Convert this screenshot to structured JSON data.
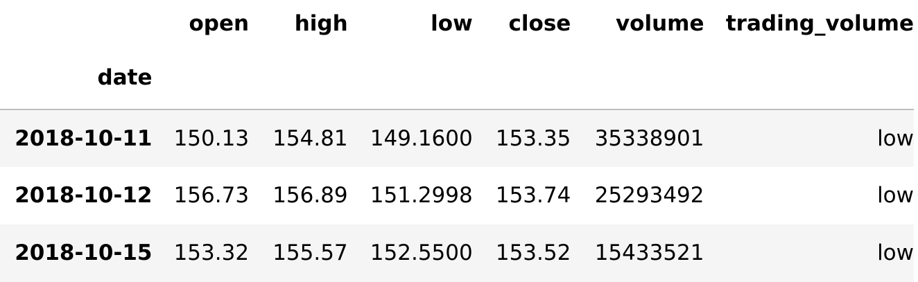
{
  "table": {
    "columns": [
      "open",
      "high",
      "low",
      "close",
      "volume",
      "trading_volume"
    ],
    "index_name": "date",
    "rows": [
      {
        "date": "2018-10-11",
        "open": "150.13",
        "high": "154.81",
        "low": "149.1600",
        "close": "153.35",
        "volume": "35338901",
        "trading_volume": "low"
      },
      {
        "date": "2018-10-12",
        "open": "156.73",
        "high": "156.89",
        "low": "151.2998",
        "close": "153.74",
        "volume": "25293492",
        "trading_volume": "low"
      },
      {
        "date": "2018-10-15",
        "open": "153.32",
        "high": "155.57",
        "low": "152.5500",
        "close": "153.52",
        "volume": "15433521",
        "trading_volume": "low"
      }
    ]
  },
  "colors": {
    "header_border": "#bdbdbd",
    "striped_row": "#f5f5f5",
    "background": "#ffffff",
    "text": "#000000"
  }
}
